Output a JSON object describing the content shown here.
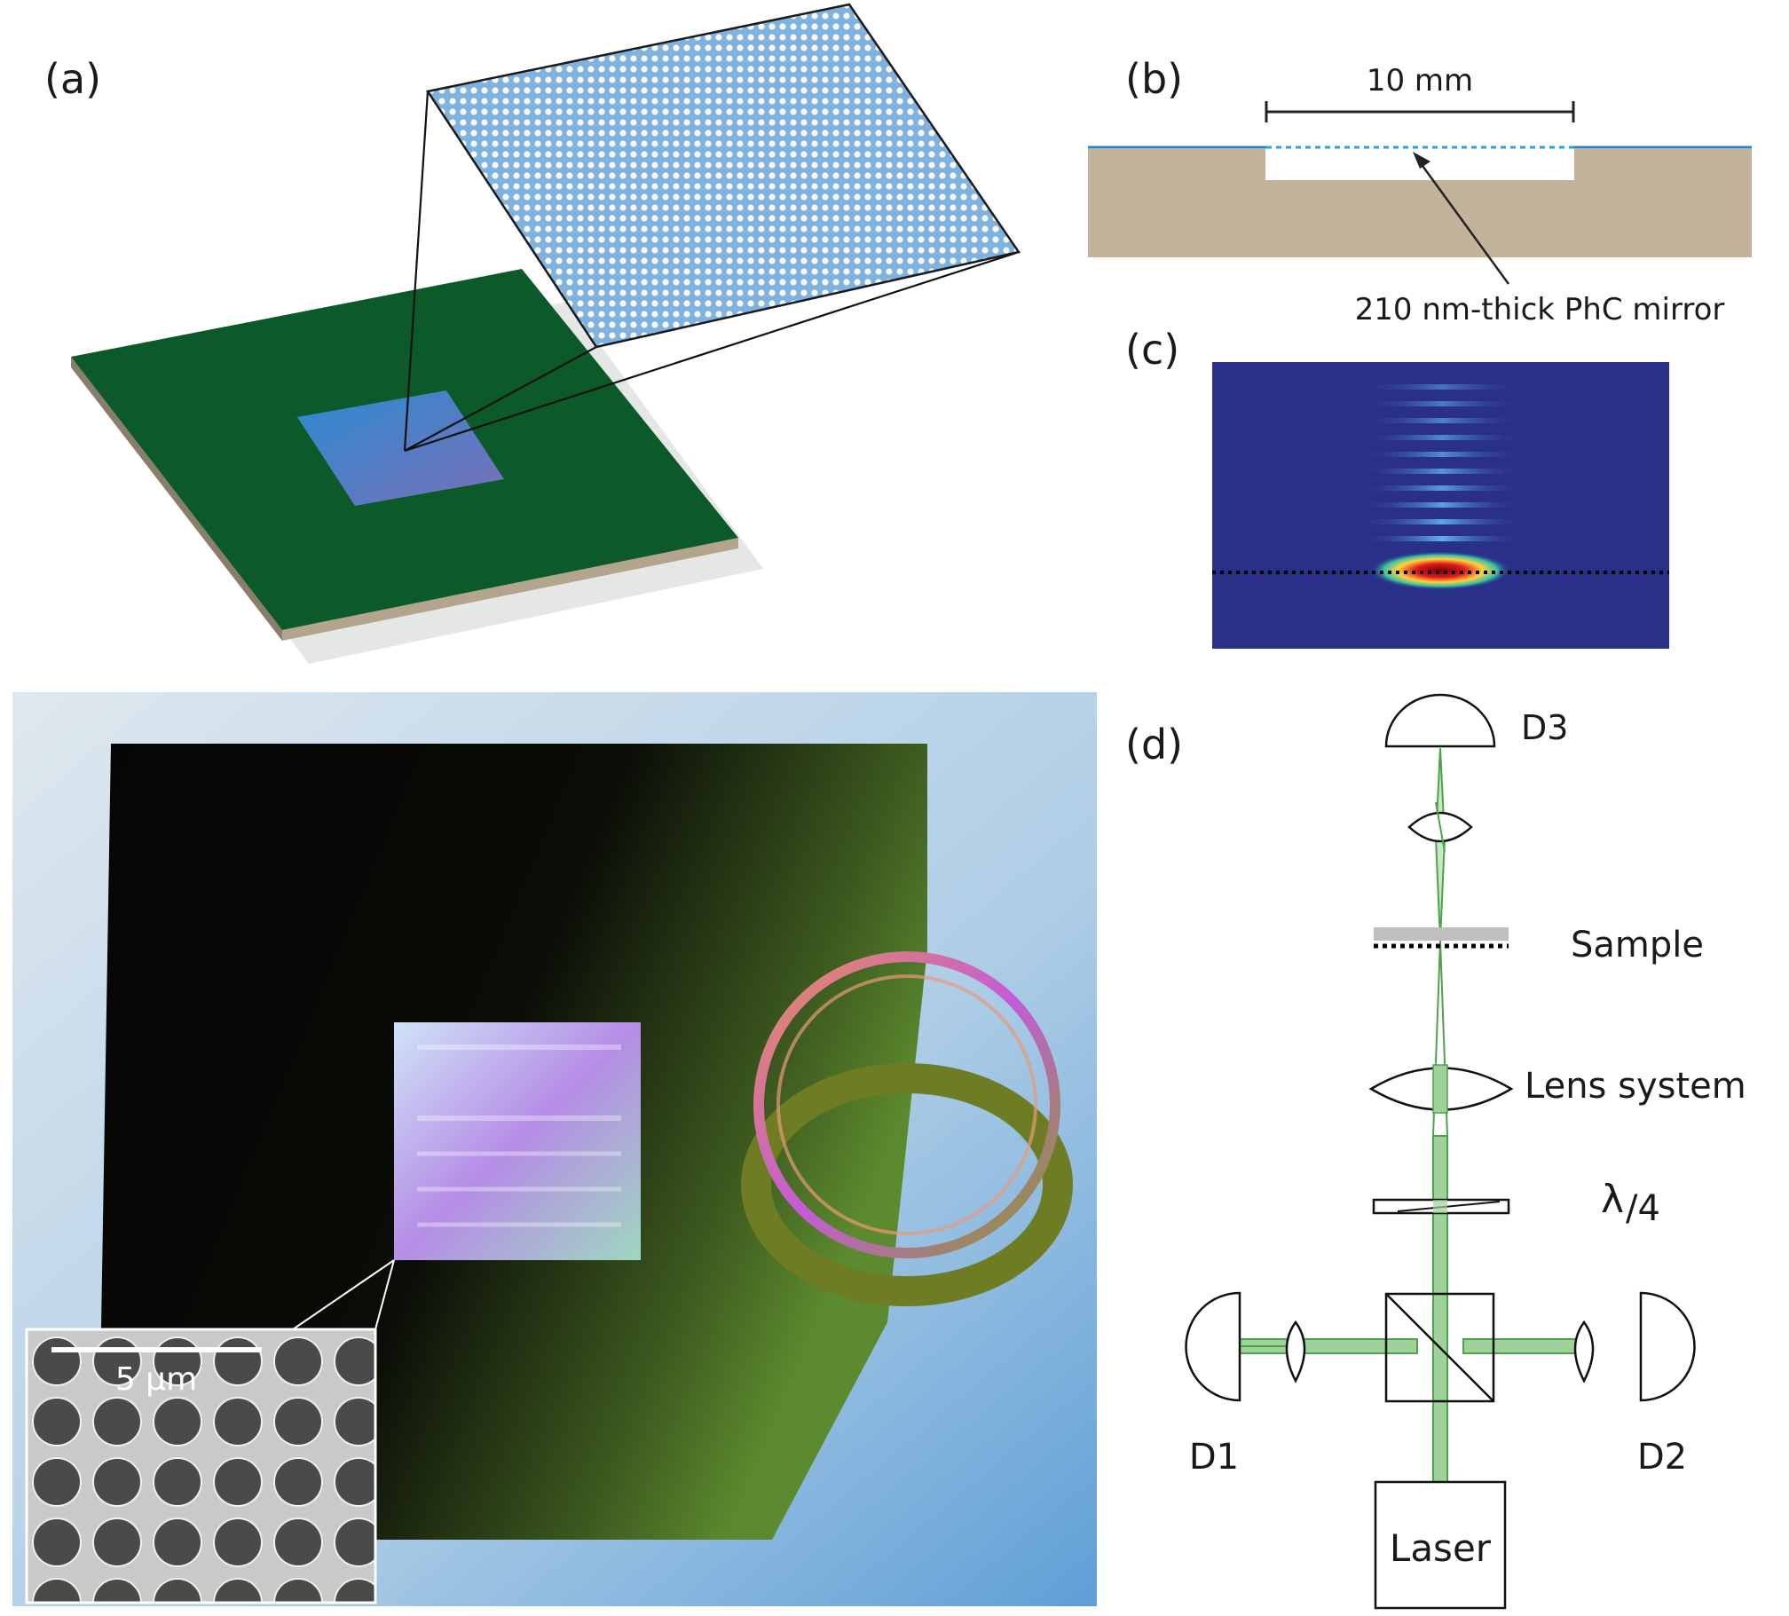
{
  "panels": {
    "a": {
      "label": "(a)"
    },
    "b": {
      "label": "(b)",
      "scale": "10 mm",
      "mirror_label": "210 nm-thick PhC mirror"
    },
    "c": {
      "label": "(c)"
    },
    "d": {
      "label": "(d)",
      "detector_top": "D3",
      "sample": "Sample",
      "lens_system": "Lens system",
      "waveplate_main": "λ",
      "waveplate_sub": "/4",
      "detector_left": "D1",
      "detector_right": "D2",
      "laser": "Laser"
    },
    "photo": {
      "scalebar": "5 µm"
    }
  },
  "colors": {
    "substrate_green": "#0c5a2a",
    "phc_blue": "#7fb2dc",
    "frame_tan": "#c2b39a",
    "field_bg": "#2a2f88",
    "beam_green": "#4fa24a"
  }
}
